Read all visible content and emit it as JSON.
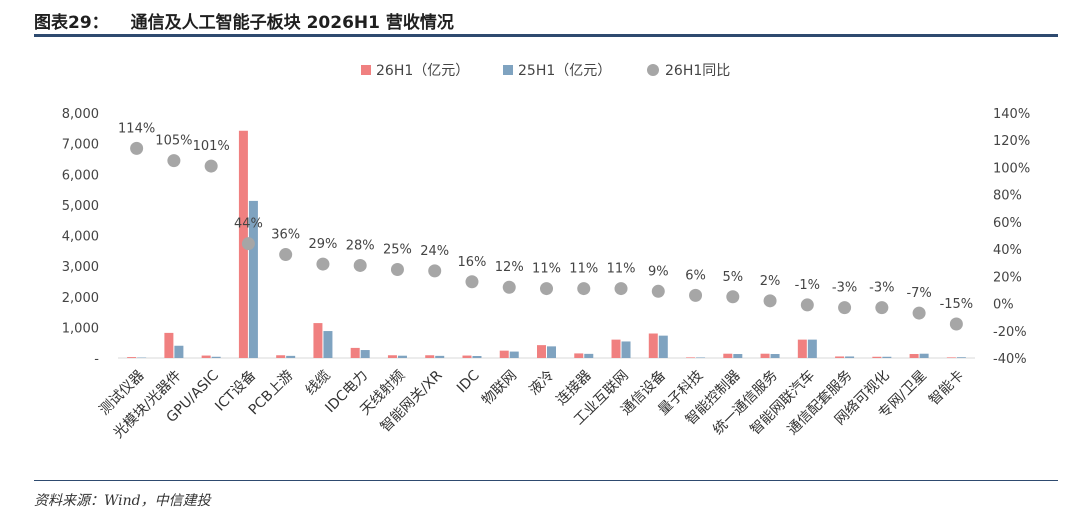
{
  "header": {
    "figure_no": "图表29：",
    "title": "通信及人工智能子板块 2026H1 营收情况"
  },
  "source": "资料来源：Wind，中信建投",
  "colors": {
    "series1": "#f08080",
    "series2": "#7fa3c0",
    "series3": "#a6a6a6",
    "rule": "#2e4a6f"
  },
  "chart_data": {
    "type": "bar",
    "categories": [
      "测试仪器",
      "光模块/光器件",
      "GPU/ASIC",
      "ICT设备",
      "PCB上游",
      "线缆",
      "IDC电力",
      "天线射频",
      "智能网关/XR",
      "IDC",
      "物联网",
      "液冷",
      "连接器",
      "工业互联网",
      "通信设备",
      "量子科技",
      "智能控制器",
      "统一通信服务",
      "智能网联汽车",
      "通信配套服务",
      "网络可视化",
      "专网/卫星",
      "智能卡"
    ],
    "series": [
      {
        "name": "26H1（亿元）",
        "axis": "left",
        "type": "bar",
        "values": [
          30,
          820,
          80,
          7420,
          90,
          1140,
          330,
          90,
          90,
          80,
          240,
          420,
          150,
          600,
          800,
          20,
          140,
          140,
          600,
          50,
          40,
          130,
          20
        ]
      },
      {
        "name": "25H1（亿元）",
        "axis": "left",
        "type": "bar",
        "values": [
          15,
          400,
          40,
          5130,
          70,
          880,
          260,
          75,
          70,
          65,
          210,
          380,
          135,
          540,
          730,
          18,
          130,
          130,
          600,
          50,
          40,
          140,
          25
        ]
      },
      {
        "name": "26H1同比",
        "axis": "right",
        "type": "scatter",
        "values": [
          114,
          105,
          101,
          44,
          36,
          29,
          28,
          25,
          24,
          16,
          12,
          11,
          11,
          11,
          9,
          6,
          5,
          2,
          -1,
          -3,
          -3,
          -7,
          -15
        ],
        "labels": [
          "114%",
          "105%",
          "101%",
          "44%",
          "36%",
          "29%",
          "28%",
          "25%",
          "24%",
          "16%",
          "12%",
          "11%",
          "11%",
          "11%",
          "9%",
          "6%",
          "5%",
          "2%",
          "-1%",
          "-3%",
          "-3%",
          "-7%",
          "-15%"
        ]
      }
    ],
    "y_left": {
      "ylim": [
        0,
        8000
      ],
      "ticks": [
        "8,000",
        "7,000",
        "6,000",
        "5,000",
        "4,000",
        "3,000",
        "2,000",
        "1,000",
        "-"
      ]
    },
    "y_right": {
      "ylim": [
        -40,
        140
      ],
      "ticks": [
        "140%",
        "120%",
        "100%",
        "80%",
        "60%",
        "40%",
        "20%",
        "0%",
        "-20%",
        "-40%"
      ]
    },
    "legend": "top-center"
  }
}
